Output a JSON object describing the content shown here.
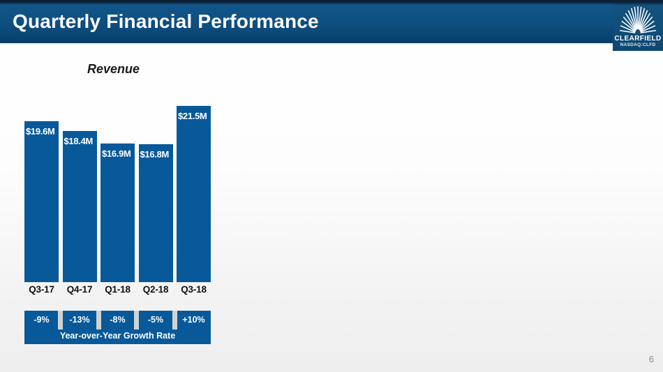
{
  "header": {
    "title": "Quarterly Financial Performance"
  },
  "logo": {
    "company": "CLEARFIELD",
    "ticker": "NASDAQ:CLFD"
  },
  "chart_data": {
    "type": "bar",
    "title": "Revenue",
    "categories": [
      "Q3-17",
      "Q4-17",
      "Q1-18",
      "Q2-18",
      "Q3-18"
    ],
    "values": [
      19.6,
      18.4,
      16.9,
      16.8,
      21.5
    ],
    "value_labels": [
      "$19.6M",
      "$18.4M",
      "$16.9M",
      "$16.8M",
      "$21.5M"
    ],
    "ylim": [
      0,
      21.5
    ],
    "grid": false,
    "legend": false,
    "growth": {
      "labels": [
        "-9%",
        "-13%",
        "-8%",
        "-5%",
        "+10%"
      ],
      "caption": "Year-over-Year Growth Rate"
    }
  },
  "colors": {
    "bar_blue": "#07599a",
    "separator_gray": "#d2d2d2",
    "header_navy": "#0e4d7e"
  },
  "footer": {
    "page_number": "6"
  }
}
